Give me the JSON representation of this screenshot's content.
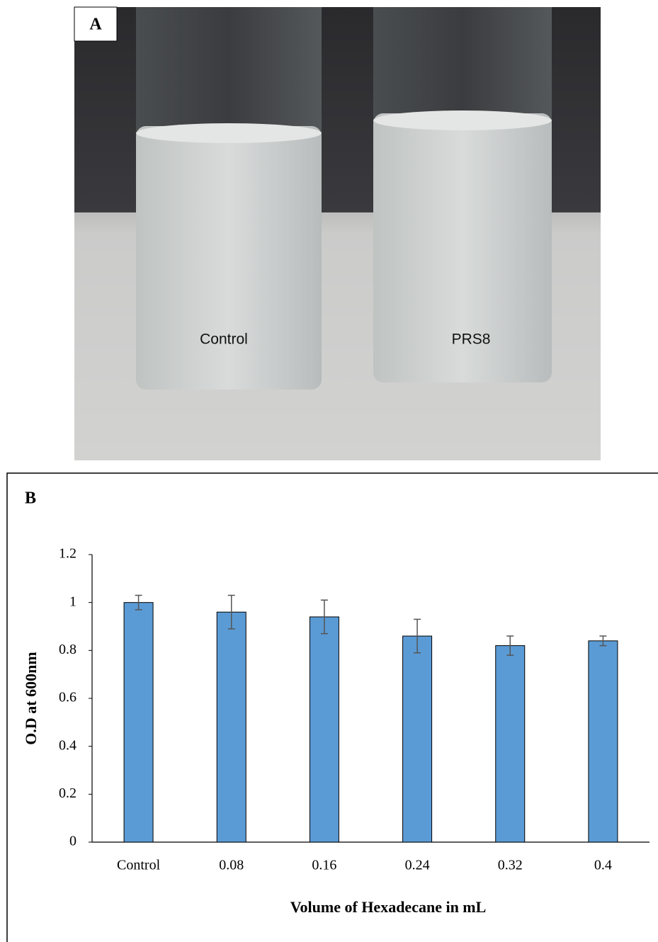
{
  "panel_a": {
    "label": "A",
    "tube_labels": [
      "Control",
      "PRS8"
    ]
  },
  "chart_data": {
    "type": "bar",
    "panel_label": "B",
    "categories": [
      "Control",
      "0.08",
      "0.16",
      "0.24",
      "0.32",
      "0.4"
    ],
    "values": [
      1.0,
      0.96,
      0.94,
      0.86,
      0.82,
      0.84
    ],
    "errors": [
      0.03,
      0.07,
      0.07,
      0.07,
      0.04,
      0.02
    ],
    "color": "#5b9bd5",
    "ylim": [
      0,
      1.2
    ],
    "yticks": [
      0,
      0.2,
      0.4,
      0.6,
      0.8,
      1,
      1.2
    ],
    "ylabel": "O.D at 600nm",
    "xlabel": "Volume of Hexadecane in mL",
    "grid": false
  }
}
